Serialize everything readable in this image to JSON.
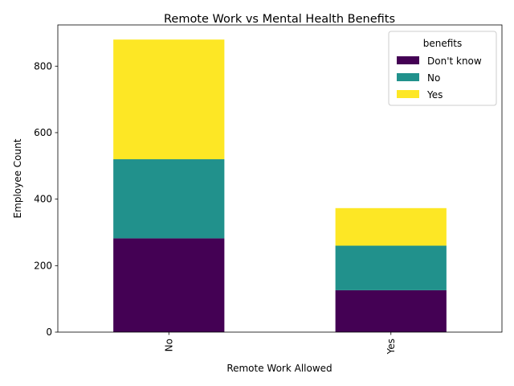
{
  "chart_data": {
    "type": "bar",
    "stacked": true,
    "title": "Remote Work vs Mental Health Benefits",
    "xlabel": "Remote Work Allowed",
    "ylabel": "Employee Count",
    "categories": [
      "No",
      "Yes"
    ],
    "series": [
      {
        "name": "Don't know",
        "color": "#440154",
        "values": [
          282,
          126
        ]
      },
      {
        "name": "No",
        "color": "#21918c",
        "values": [
          238,
          134
        ]
      },
      {
        "name": "Yes",
        "color": "#fde725",
        "values": [
          360,
          113
        ]
      }
    ],
    "ylim": [
      0,
      924
    ],
    "yticks": [
      0,
      200,
      400,
      600,
      800
    ],
    "legend": {
      "title": "benefits",
      "placement": "top-right"
    },
    "grid": false
  }
}
